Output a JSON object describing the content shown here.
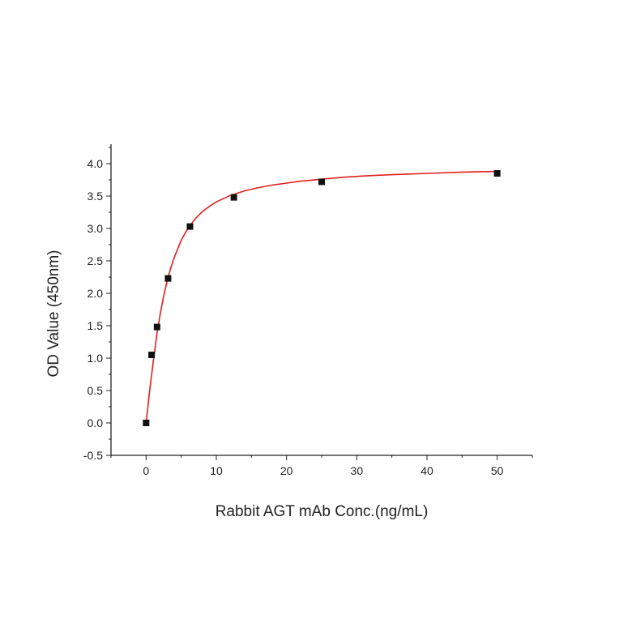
{
  "chart_data": {
    "type": "scatter",
    "xlabel": "Rabbit AGT mAb Conc.(ng/mL)",
    "ylabel": "OD Value (450nm)",
    "xlim": [
      -5,
      55
    ],
    "ylim": [
      -0.5,
      4.3
    ],
    "x_ticks": [
      "0",
      "10",
      "20",
      "30",
      "40",
      "50"
    ],
    "y_ticks": [
      "-0.5",
      "0.0",
      "0.5",
      "1.0",
      "1.5",
      "2.0",
      "2.5",
      "3.0",
      "3.5",
      "4.0"
    ],
    "grid": false,
    "legend": "none",
    "series": [
      {
        "marker": "square",
        "color": "#111111",
        "x": [
          0,
          0.78,
          1.56,
          3.125,
          6.25,
          12.5,
          25,
          50
        ],
        "y": [
          0.0,
          1.05,
          1.48,
          2.23,
          3.03,
          3.48,
          3.72,
          3.85
        ]
      }
    ],
    "fit_curve": {
      "type": "line",
      "color": "#e02020",
      "x": [
        0,
        0.5,
        1,
        1.5,
        2,
        2.5,
        3,
        3.5,
        4,
        5,
        6,
        7,
        8,
        9,
        10,
        12,
        14,
        16,
        18,
        20,
        22,
        25,
        28,
        31,
        35,
        40,
        45,
        50
      ],
      "y": [
        0.0,
        0.5,
        0.93,
        1.34,
        1.68,
        1.96,
        2.19,
        2.39,
        2.55,
        2.82,
        3.01,
        3.15,
        3.26,
        3.34,
        3.41,
        3.51,
        3.58,
        3.63,
        3.67,
        3.7,
        3.73,
        3.76,
        3.79,
        3.81,
        3.83,
        3.85,
        3.87,
        3.88
      ]
    }
  }
}
